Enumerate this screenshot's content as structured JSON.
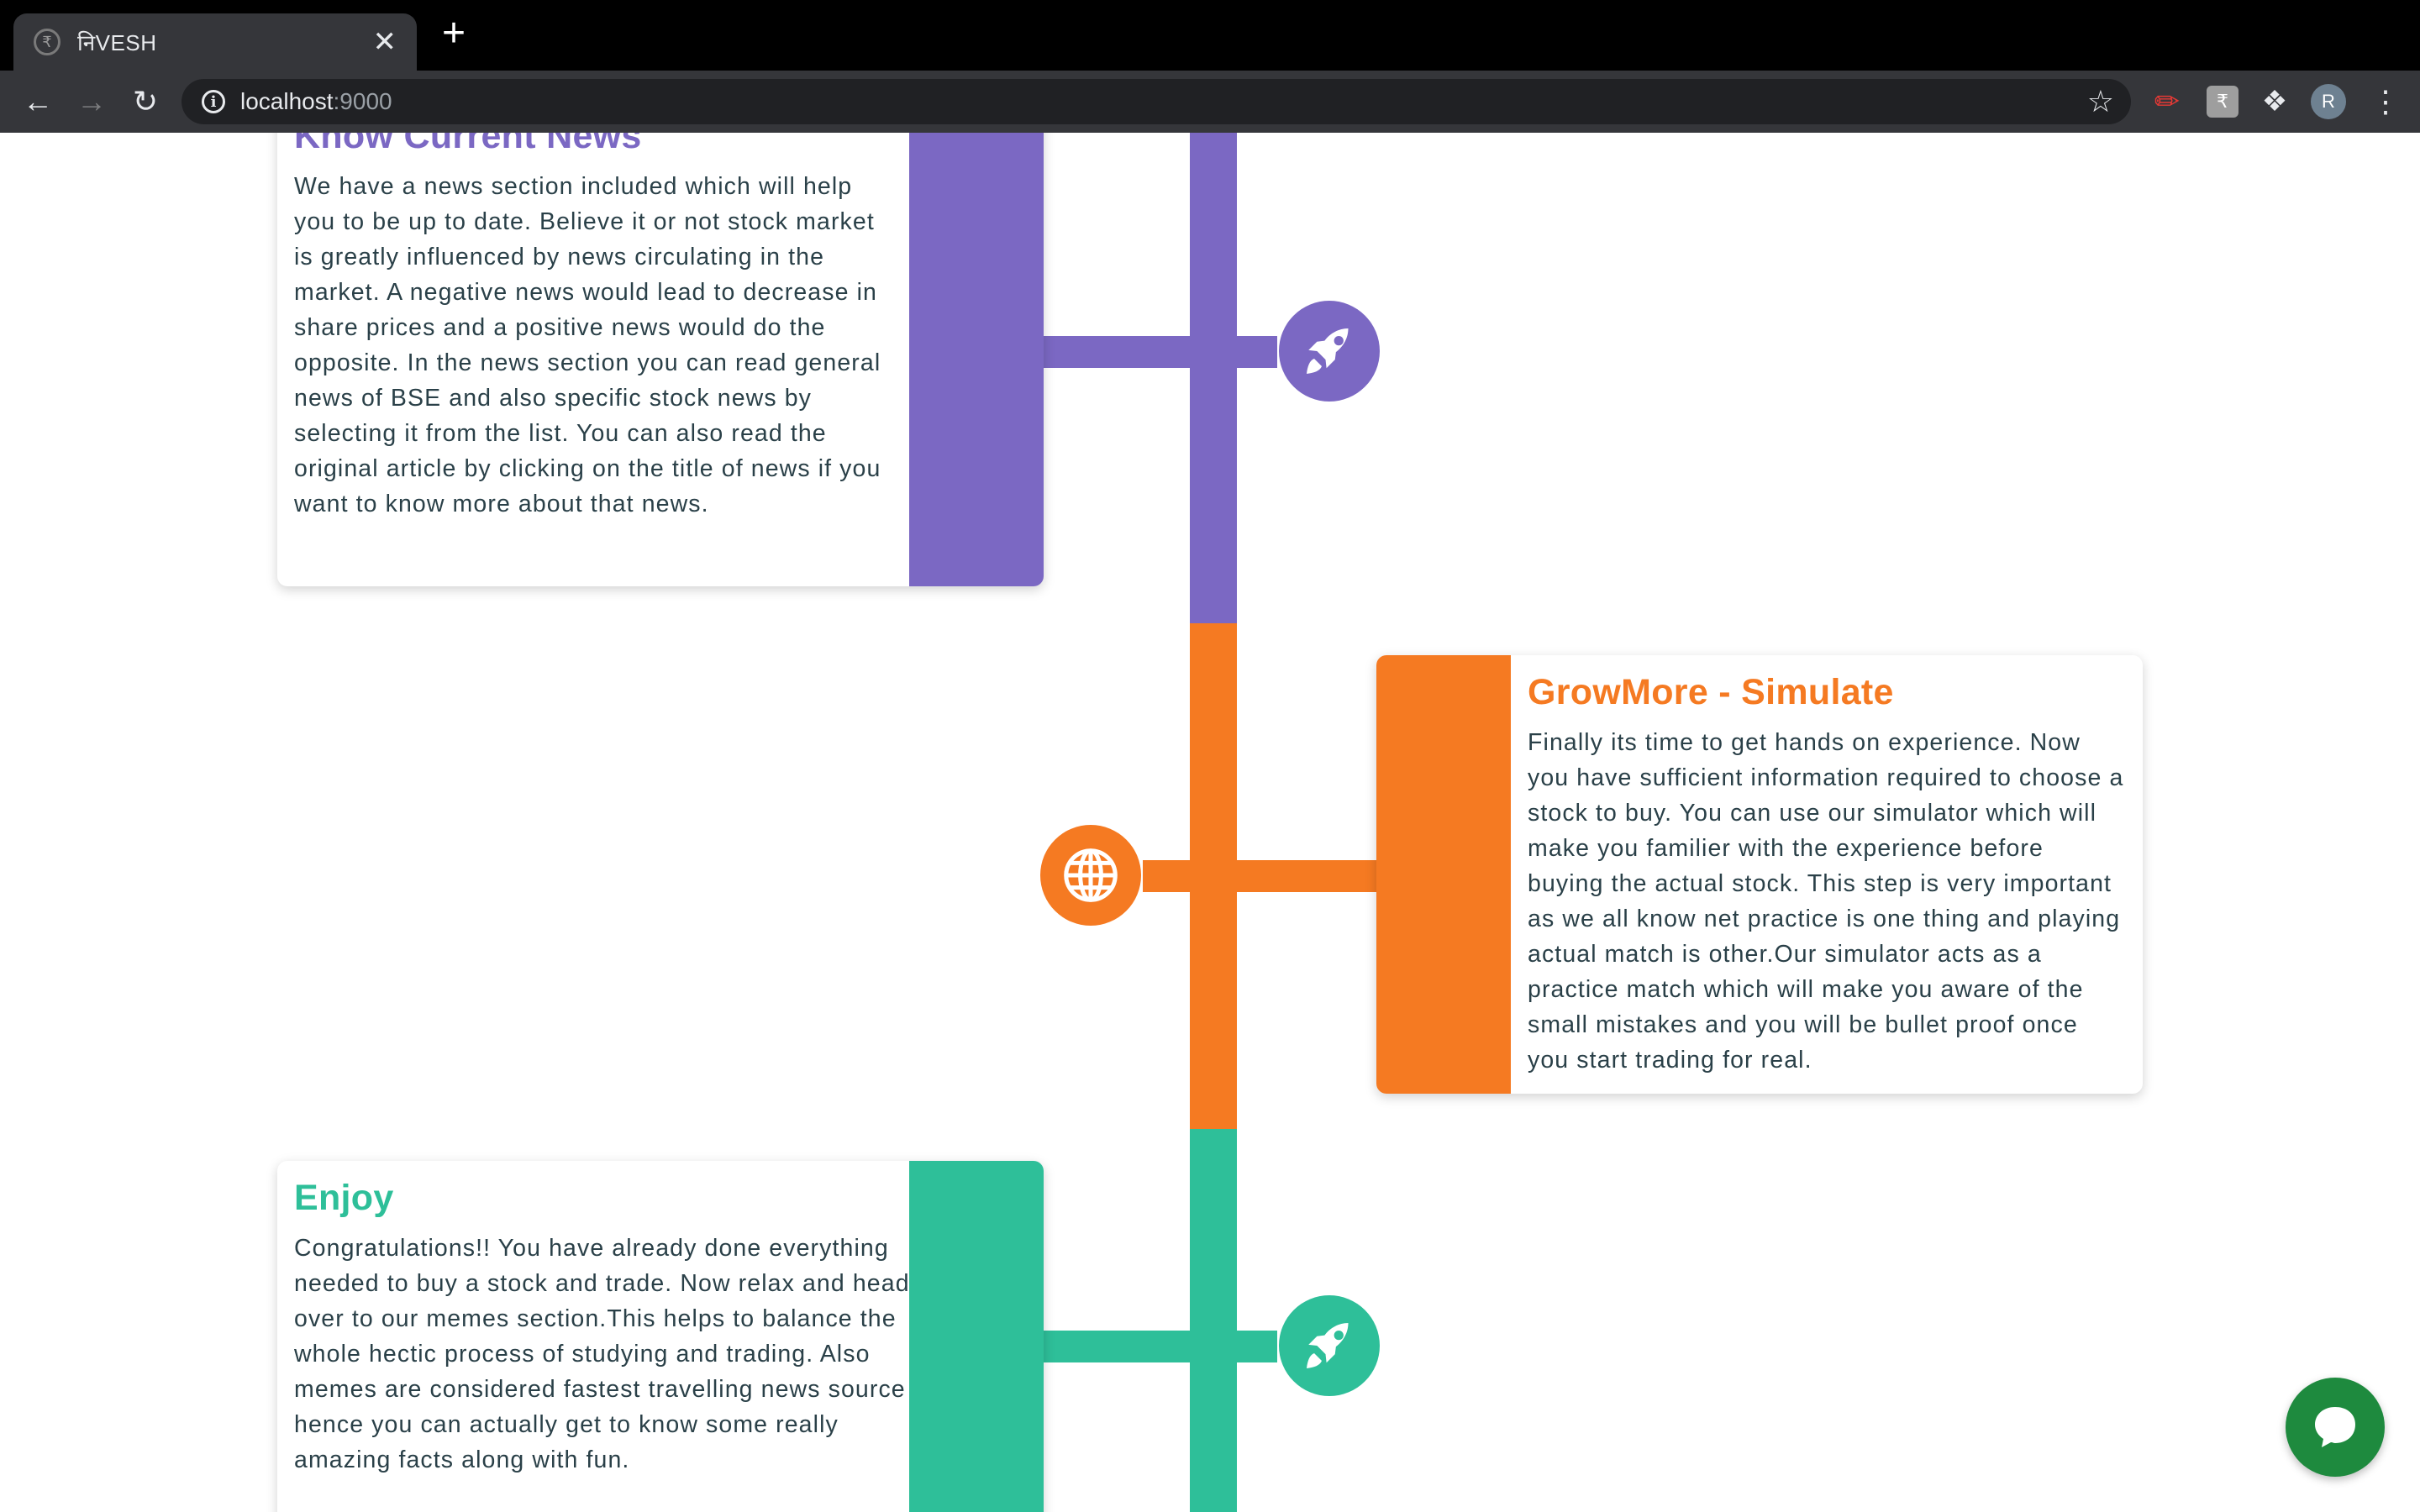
{
  "browser": {
    "tab_title": "निVESH",
    "tab_favicon": "₹",
    "tab_close": "✕",
    "new_tab": "+",
    "url_host": "localhost",
    "url_port": ":9000",
    "avatar_initial": "R"
  },
  "colors": {
    "purple": "#7b68c3",
    "orange": "#f57a22",
    "teal": "#2ebf99"
  },
  "steps": [
    {
      "title": "Know Current News",
      "icon": "rocket-icon",
      "text": "We have a news section included which will help you to be up to date. Believe it or not stock market is greatly influenced by news circulating in the market. A negative news would lead to decrease in share prices and a positive news would do the opposite. In the news section you can read general news of BSE and also specific stock news by selecting it from the list. You can also read the original article by clicking on the title of news if you want to know more about that news."
    },
    {
      "title": "GrowMore - Simulate",
      "icon": "globe-icon",
      "text": "Finally its time to get hands on experience. Now you have sufficient information required to choose a stock to buy. You can use our simulator which will make you familier with the experience before buying the actual stock. This step is very important as we all know net practice is one thing and playing actual match is other.Our simulator acts as a practice match which will make you aware of the small mistakes and you will be bullet proof once you start trading for real."
    },
    {
      "title": "Enjoy",
      "icon": "rocket-icon",
      "text": "Congratulations!! You have already done everything needed to buy a stock and trade. Now relax and head over to our memes section.This helps to balance the whole hectic process of studying and trading. Also memes are considered fastest travelling news source hence you can actually get to know some really amazing facts along with fun."
    }
  ],
  "chat": {
    "icon": "chat-icon"
  }
}
